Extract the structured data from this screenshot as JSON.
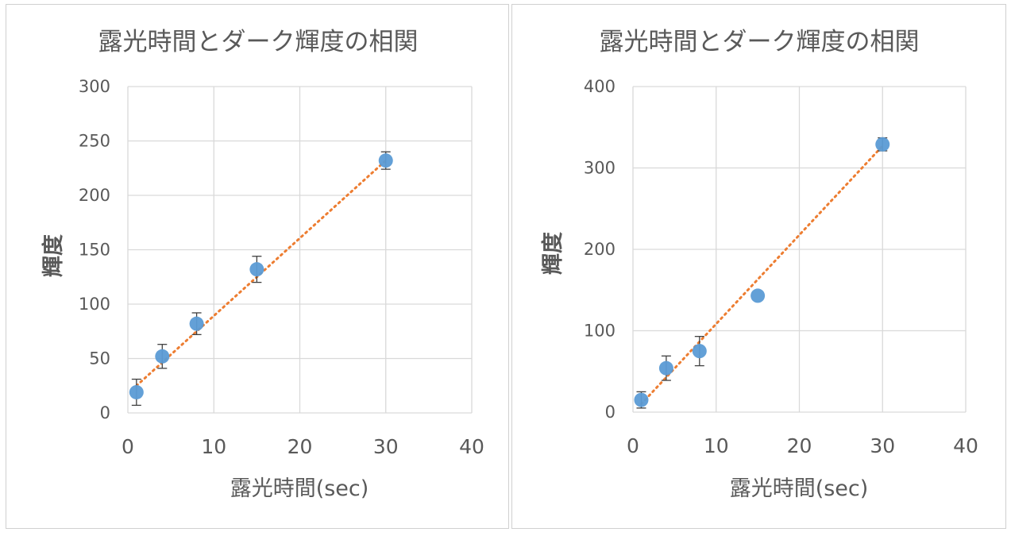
{
  "colors": {
    "marker": "#5b9bd5",
    "trendline": "#ed7d31",
    "error_bar": "#404040",
    "grid": "#d9d9d9",
    "text": "#595959"
  },
  "chart_data": [
    {
      "type": "scatter",
      "title": "露光時間とダーク輝度の相関",
      "xlabel": "露光時間(sec)",
      "ylabel": "輝度",
      "xlim": [
        0,
        40
      ],
      "ylim": [
        0,
        300
      ],
      "x_ticks": [
        "0",
        "10",
        "20",
        "30",
        "40"
      ],
      "y_ticks": [
        "0",
        "50",
        "100",
        "150",
        "200",
        "250",
        "300"
      ],
      "grid": true,
      "legend": "none",
      "series": [
        {
          "points": [
            {
              "x": 1,
              "y": 19,
              "err": 12
            },
            {
              "x": 4,
              "y": 52,
              "err": 11
            },
            {
              "x": 8,
              "y": 82,
              "err": 10
            },
            {
              "x": 15,
              "y": 132,
              "err": 12
            },
            {
              "x": 30,
              "y": 232,
              "err": 8
            }
          ],
          "trendline": {
            "type": "linear",
            "from": [
              1,
              25
            ],
            "to": [
              30,
              232
            ]
          }
        }
      ]
    },
    {
      "type": "scatter",
      "title": "露光時間とダーク輝度の相関",
      "xlabel": "露光時間(sec)",
      "ylabel": "輝度",
      "xlim": [
        0,
        40
      ],
      "ylim": [
        0,
        400
      ],
      "x_ticks": [
        "0",
        "10",
        "20",
        "30",
        "40"
      ],
      "y_ticks": [
        "0",
        "100",
        "200",
        "300",
        "400"
      ],
      "grid": true,
      "legend": "none",
      "series": [
        {
          "points": [
            {
              "x": 1,
              "y": 15,
              "err": 10
            },
            {
              "x": 4,
              "y": 54,
              "err": 15
            },
            {
              "x": 8,
              "y": 75,
              "err": 18
            },
            {
              "x": 15,
              "y": 143,
              "err": 0
            },
            {
              "x": 30,
              "y": 329,
              "err": 8
            }
          ],
          "trendline": {
            "type": "linear",
            "from": [
              1,
              10
            ],
            "to": [
              30,
              327
            ]
          }
        }
      ]
    }
  ]
}
